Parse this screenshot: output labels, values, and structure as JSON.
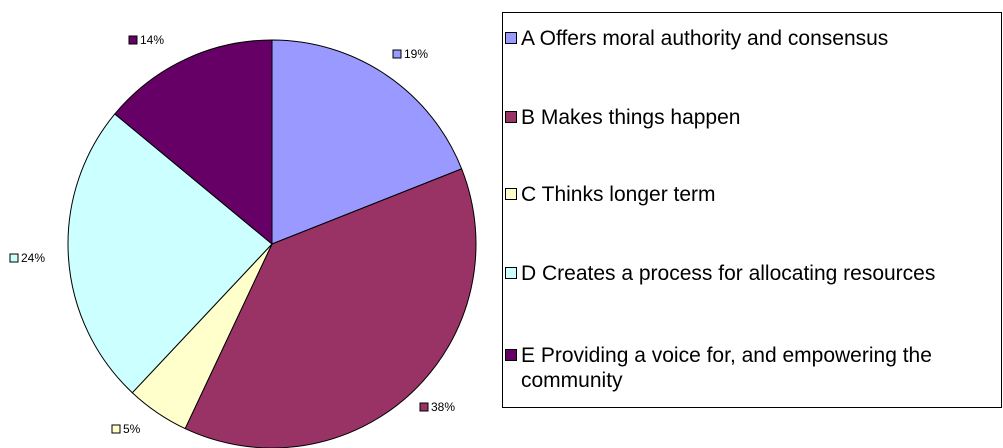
{
  "chart_data": {
    "type": "pie",
    "title": "",
    "legend_position": "right",
    "slices": [
      {
        "key": "A",
        "label": "A Offers moral authority and consensus",
        "value": 19,
        "display": "19%",
        "color": "#9999ff"
      },
      {
        "key": "B",
        "label": "B Makes things happen",
        "value": 38,
        "display": "38%",
        "color": "#993366"
      },
      {
        "key": "C",
        "label": "C Thinks longer term",
        "value": 5,
        "display": "5%",
        "color": "#ffffcc"
      },
      {
        "key": "D",
        "label": "D Creates a process for allocating resources",
        "value": 24,
        "display": "24%",
        "color": "#ccffff"
      },
      {
        "key": "E",
        "label": "E Providing a voice for, and empowering the community",
        "value": 14,
        "display": "14%",
        "color": "#660066"
      }
    ]
  }
}
